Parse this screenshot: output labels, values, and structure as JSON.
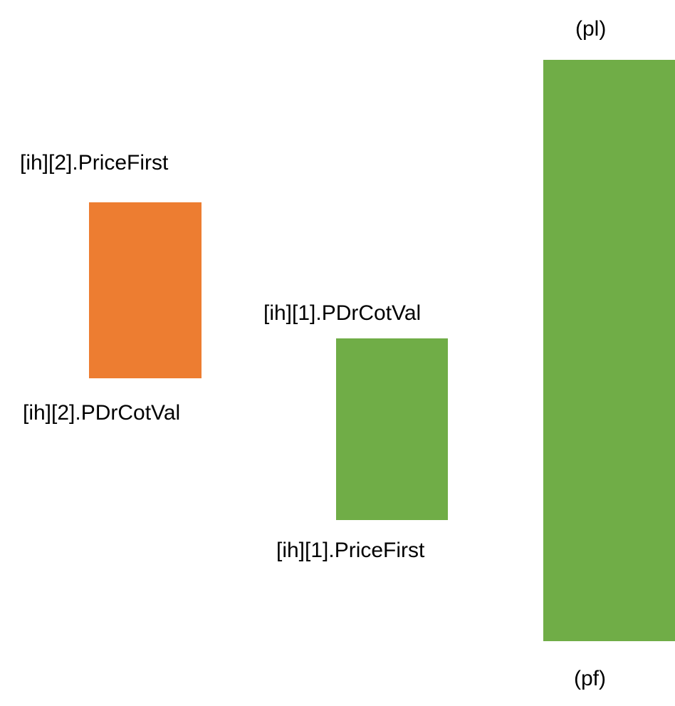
{
  "colors": {
    "background": "#ffffff",
    "orange": "#ED7D31",
    "green": "#70AD47",
    "text": "#000000"
  },
  "blocks": [
    {
      "id": "ih2",
      "color": "orange",
      "top_label": "[ih][2].PriceFirst",
      "bottom_label": "[ih][2].PDrCotVal"
    },
    {
      "id": "ih1",
      "color": "green",
      "top_label": "[ih][1].PDrCotVal",
      "bottom_label": "[ih][1].PriceFirst"
    },
    {
      "id": "pl-pf",
      "color": "green",
      "top_label": "(pl)",
      "bottom_label": "(pf)"
    }
  ]
}
